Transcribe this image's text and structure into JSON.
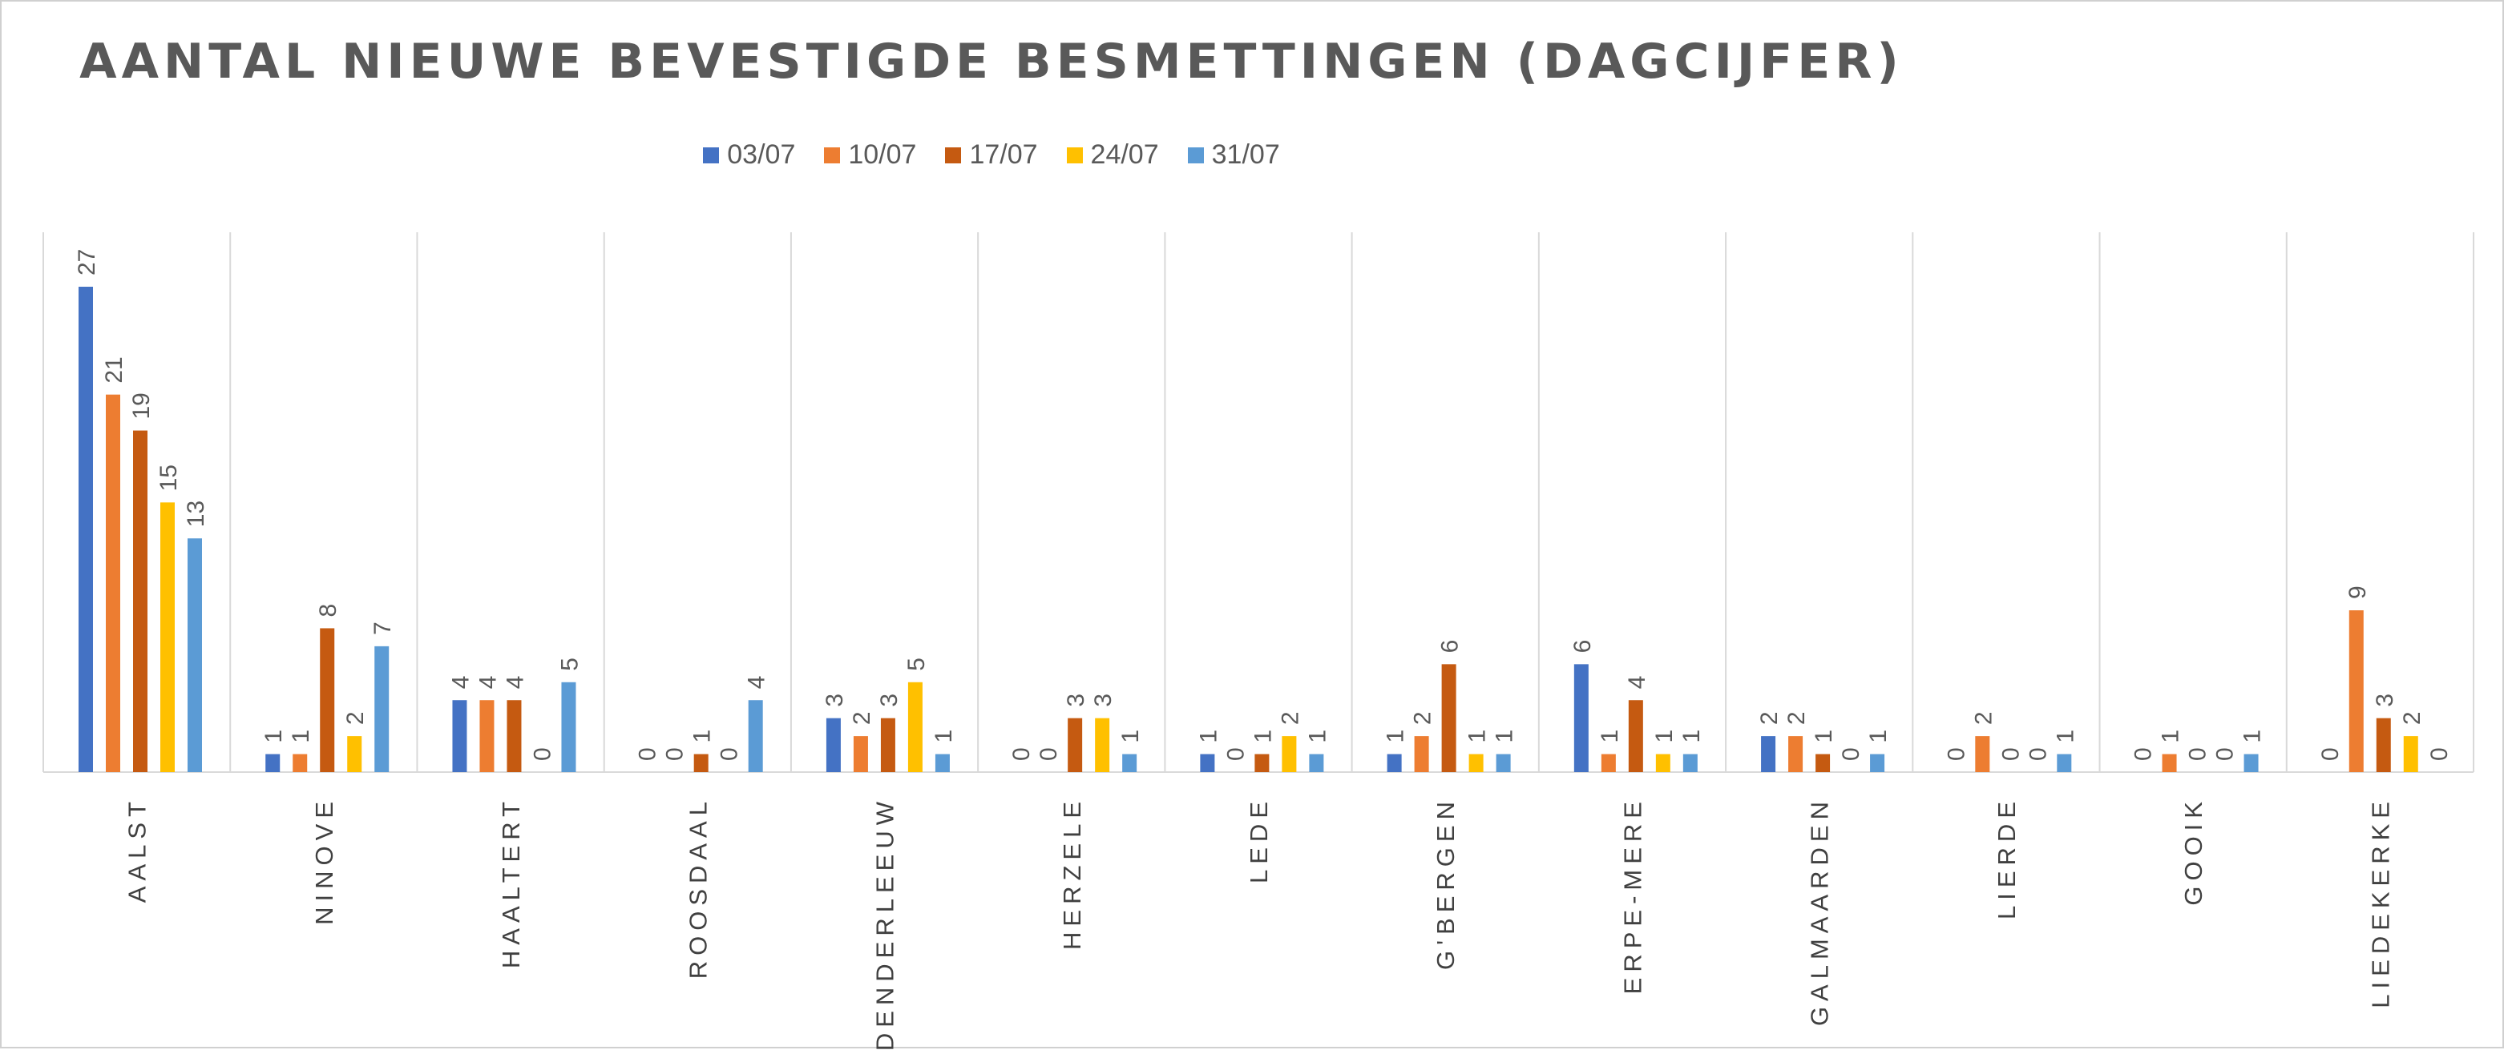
{
  "chart_data": {
    "type": "bar",
    "title": "AANTAL NIEUWE BEVESTIGDE BESMETTINGEN (DAGCIJFER)",
    "xlabel": "",
    "ylabel": "",
    "ylim": [
      0,
      30
    ],
    "grid": false,
    "legend_position": "top",
    "categories": [
      "AALST",
      "NINOVE",
      "HAALTERT",
      "ROOSDAAL",
      "DENDERLEEUW",
      "HERZELE",
      "LEDE",
      "G'BERGEN",
      "ERPE-MERE",
      "GALMAARDEN",
      "LIERDE",
      "GOOIK",
      "LIEDEKERKE"
    ],
    "series": [
      {
        "name": "03/07",
        "color": "#4472C4",
        "values": [
          27,
          1,
          4,
          0,
          3,
          0,
          1,
          1,
          6,
          2,
          0,
          0,
          0
        ]
      },
      {
        "name": "10/07",
        "color": "#ED7D31",
        "values": [
          21,
          1,
          4,
          0,
          2,
          0,
          0,
          2,
          1,
          2,
          2,
          1,
          9
        ]
      },
      {
        "name": "17/07",
        "color": "#C55A11",
        "values": [
          19,
          8,
          4,
          1,
          3,
          3,
          1,
          6,
          4,
          1,
          0,
          0,
          3
        ]
      },
      {
        "name": "24/07",
        "color": "#FFC000",
        "values": [
          15,
          2,
          0,
          0,
          5,
          3,
          2,
          1,
          1,
          0,
          0,
          0,
          2
        ]
      },
      {
        "name": "31/07",
        "color": "#5B9BD5",
        "values": [
          13,
          7,
          5,
          4,
          1,
          1,
          1,
          1,
          1,
          1,
          1,
          1,
          0
        ]
      }
    ]
  }
}
